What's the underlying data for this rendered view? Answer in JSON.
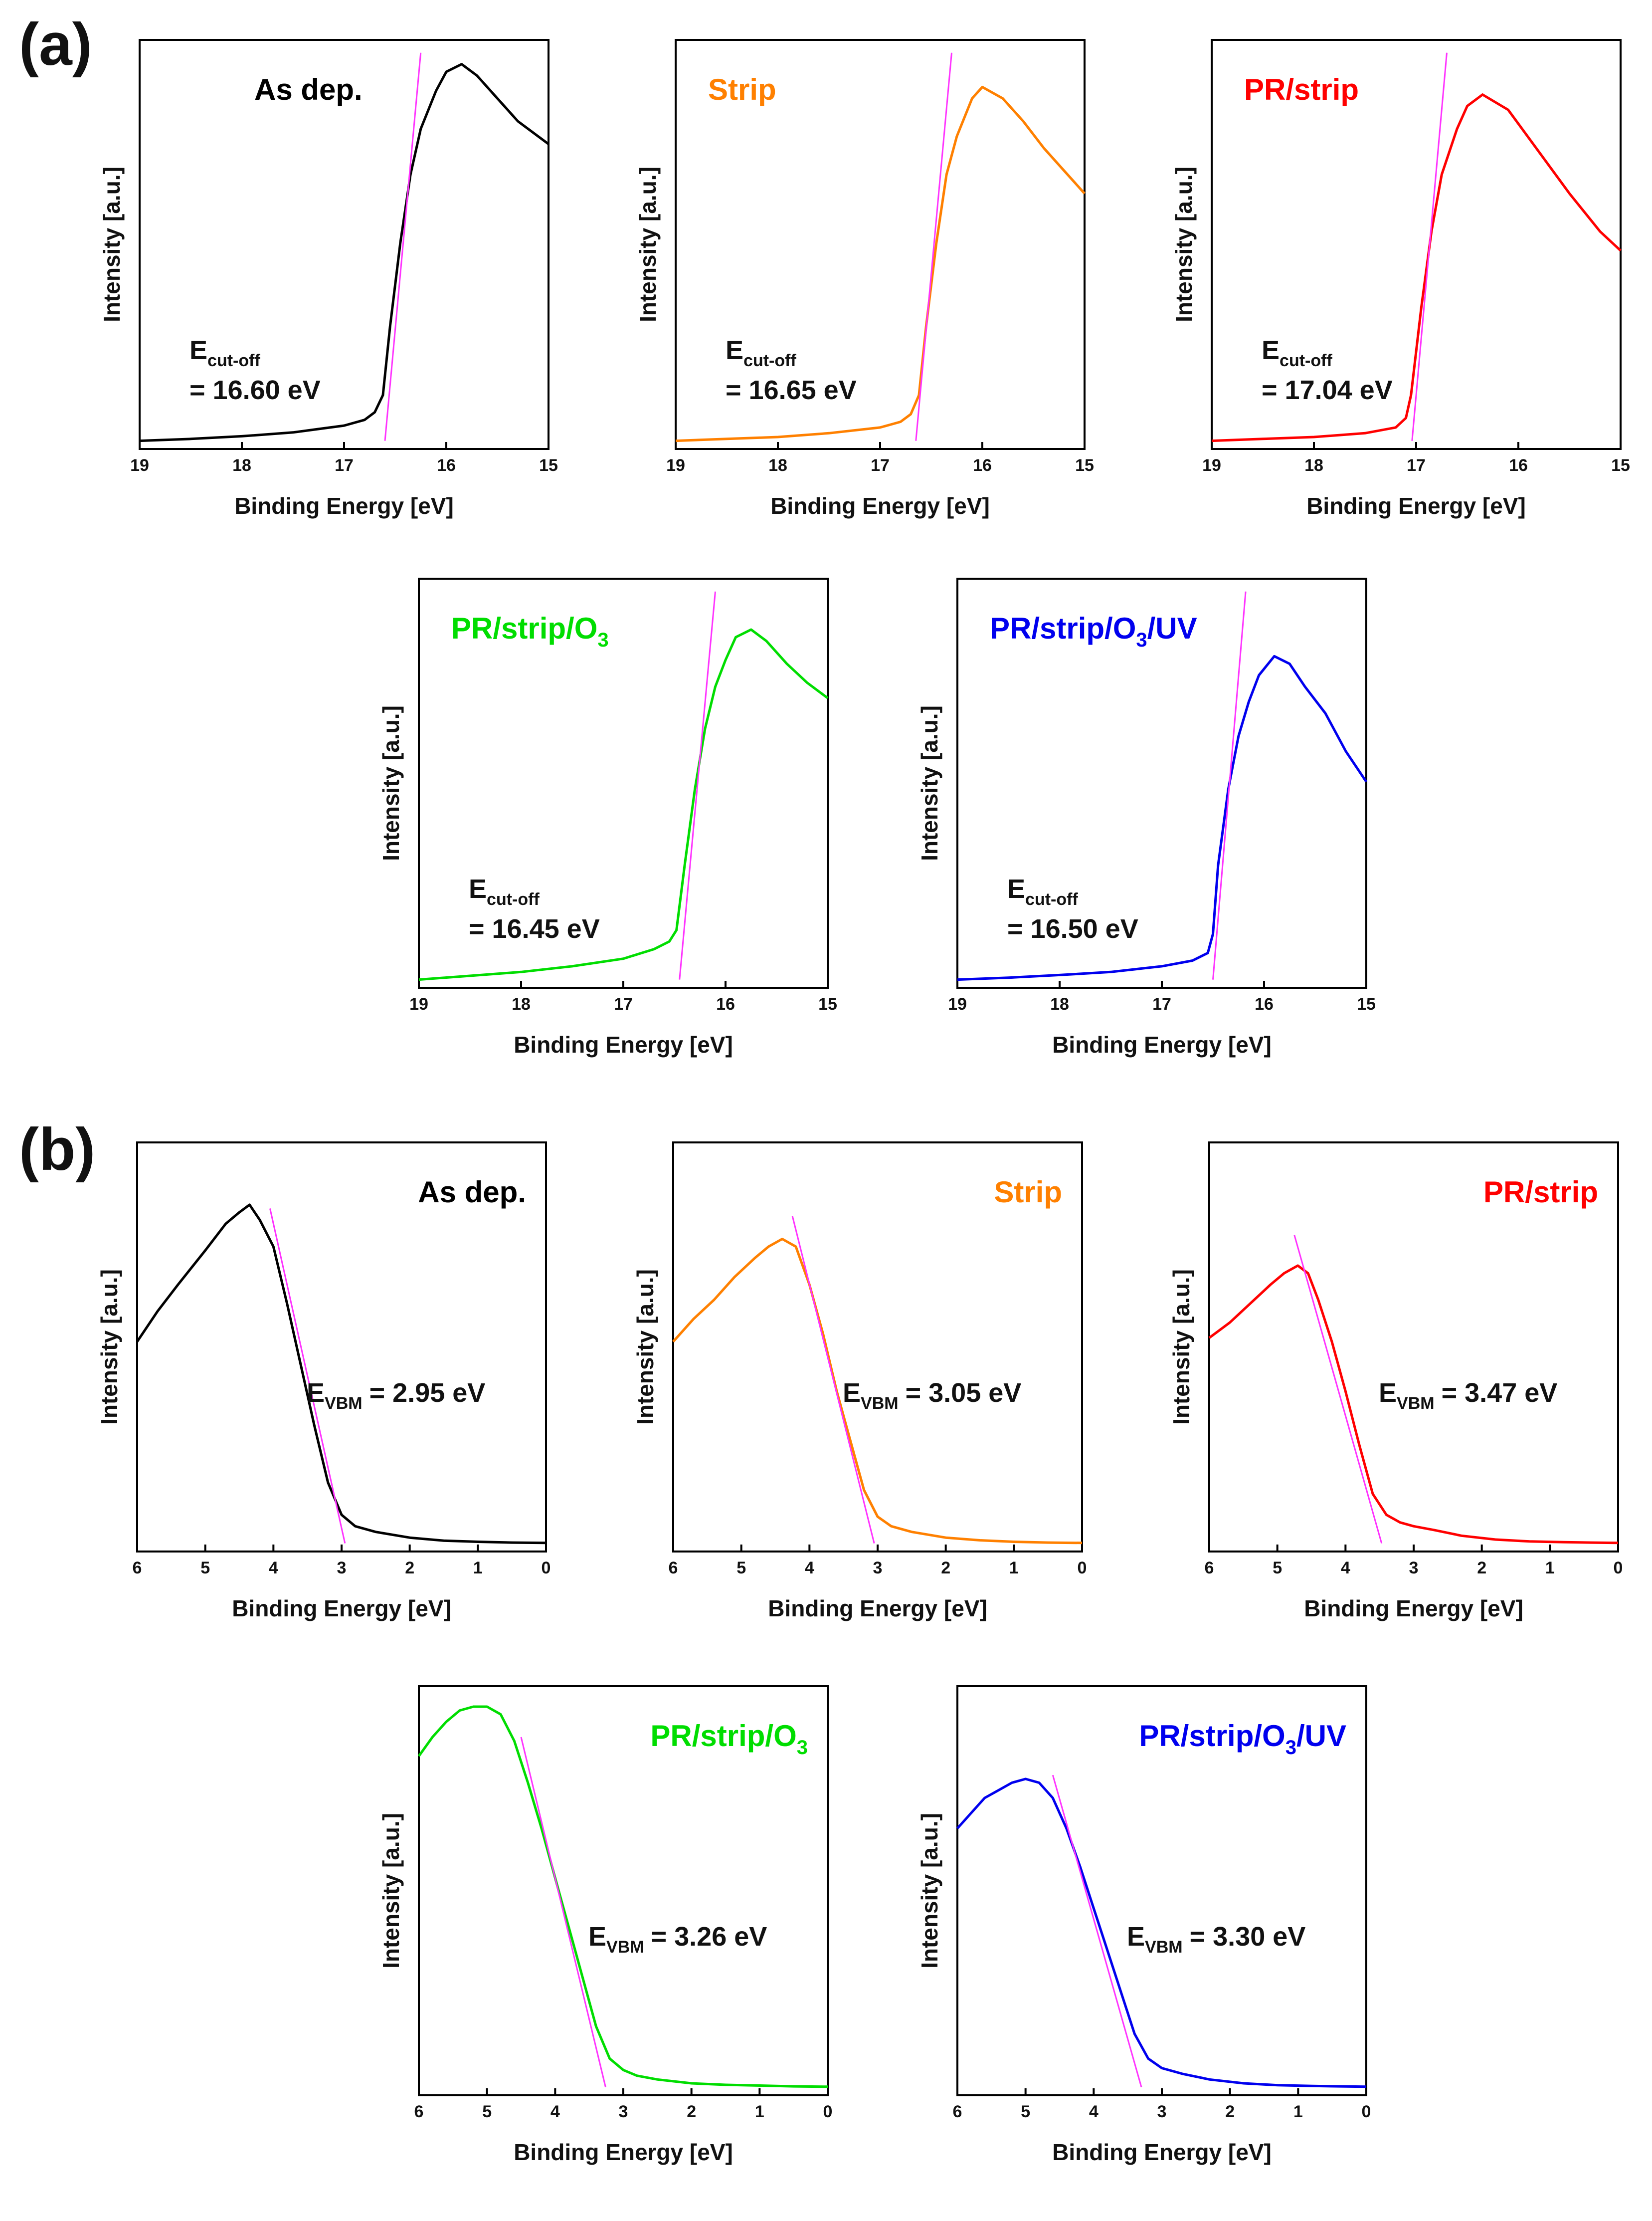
{
  "panel_labels": {
    "a": "(a)",
    "b": "(b)"
  },
  "common": {
    "xlabel": "Binding Energy [eV]",
    "ylabel": "Intensity [a.u.]",
    "cutoff_symbol": "E",
    "cutoff_sub": "cut-off",
    "vbm_symbol": "E",
    "vbm_sub": "VBM",
    "fit_color": "#ff33ff"
  },
  "chart_data": [
    {
      "id": "a1",
      "type": "line",
      "kind": "cutoff",
      "title_parts": [
        "As dep."
      ],
      "color": "#000000",
      "xlabel": "Binding Energy [eV]",
      "ylabel": "Intensity [a.u.]",
      "xlim": [
        19,
        15
      ],
      "xticks": [
        "19",
        "18",
        "17",
        "16",
        "15"
      ],
      "x": [
        19,
        18.5,
        18,
        17.5,
        17,
        16.8,
        16.7,
        16.62,
        16.55,
        16.45,
        16.35,
        16.25,
        16.1,
        16.0,
        15.85,
        15.7,
        15.5,
        15.3,
        15.0
      ],
      "y": [
        0.0,
        0.005,
        0.012,
        0.022,
        0.04,
        0.055,
        0.075,
        0.12,
        0.3,
        0.52,
        0.7,
        0.82,
        0.92,
        0.97,
        0.99,
        0.96,
        0.9,
        0.84,
        0.78
      ],
      "fit_line": {
        "x": [
          16.6,
          16.25
        ],
        "y": [
          0.0,
          1.02
        ]
      },
      "value_label": "= 16.60 eV"
    },
    {
      "id": "a2",
      "type": "line",
      "kind": "cutoff",
      "title_parts": [
        "Strip"
      ],
      "color": "#ff8000",
      "xlabel": "Binding Energy [eV]",
      "ylabel": "Intensity [a.u.]",
      "xlim": [
        19,
        15
      ],
      "xticks": [
        "19",
        "18",
        "17",
        "16",
        "15"
      ],
      "x": [
        19,
        18.5,
        18,
        17.5,
        17,
        16.8,
        16.7,
        16.62,
        16.55,
        16.45,
        16.35,
        16.25,
        16.1,
        16.0,
        15.8,
        15.6,
        15.4,
        15.2,
        15.0
      ],
      "y": [
        0.0,
        0.005,
        0.01,
        0.02,
        0.035,
        0.05,
        0.07,
        0.12,
        0.3,
        0.52,
        0.7,
        0.8,
        0.9,
        0.93,
        0.9,
        0.84,
        0.77,
        0.71,
        0.65
      ],
      "fit_line": {
        "x": [
          16.65,
          16.3
        ],
        "y": [
          0.0,
          1.02
        ]
      },
      "value_label": "= 16.65 eV"
    },
    {
      "id": "a3",
      "type": "line",
      "kind": "cutoff",
      "title_parts": [
        "PR/strip"
      ],
      "color": "#ff0000",
      "xlabel": "Binding Energy [eV]",
      "ylabel": "Intensity [a.u.]",
      "xlim": [
        19,
        15
      ],
      "xticks": [
        "19",
        "18",
        "17",
        "16",
        "15"
      ],
      "x": [
        19,
        18.5,
        18,
        17.5,
        17.2,
        17.1,
        17.05,
        16.95,
        16.85,
        16.75,
        16.6,
        16.5,
        16.35,
        16.1,
        15.8,
        15.5,
        15.2,
        15.0
      ],
      "y": [
        0.0,
        0.005,
        0.01,
        0.02,
        0.035,
        0.06,
        0.12,
        0.35,
        0.55,
        0.7,
        0.82,
        0.88,
        0.91,
        0.87,
        0.76,
        0.65,
        0.55,
        0.5
      ],
      "fit_line": {
        "x": [
          17.04,
          16.7
        ],
        "y": [
          0.0,
          1.02
        ]
      },
      "value_label": "= 17.04 eV"
    },
    {
      "id": "a4",
      "type": "line",
      "kind": "cutoff",
      "title_parts": [
        "PR/strip/O",
        "3",
        ""
      ],
      "color": "#00dd00",
      "xlabel": "Binding Energy [eV]",
      "ylabel": "Intensity [a.u.]",
      "xlim": [
        19,
        15
      ],
      "xticks": [
        "19",
        "18",
        "17",
        "16",
        "15"
      ],
      "x": [
        19,
        18.5,
        18,
        17.5,
        17,
        16.7,
        16.55,
        16.48,
        16.4,
        16.3,
        16.2,
        16.1,
        16.0,
        15.9,
        15.75,
        15.6,
        15.4,
        15.2,
        15.0
      ],
      "y": [
        0.0,
        0.01,
        0.02,
        0.035,
        0.055,
        0.08,
        0.1,
        0.13,
        0.3,
        0.5,
        0.66,
        0.77,
        0.84,
        0.9,
        0.92,
        0.89,
        0.83,
        0.78,
        0.74
      ],
      "fit_line": {
        "x": [
          16.45,
          16.1
        ],
        "y": [
          0.0,
          1.02
        ]
      },
      "value_label": "= 16.45 eV"
    },
    {
      "id": "a5",
      "type": "line",
      "kind": "cutoff",
      "title_parts": [
        "PR/strip/O",
        "3",
        "/UV"
      ],
      "color": "#0000ee",
      "xlabel": "Binding Energy [eV]",
      "ylabel": "Intensity [a.u.]",
      "xlim": [
        19,
        15
      ],
      "xticks": [
        "19",
        "18",
        "17",
        "16",
        "15"
      ],
      "x": [
        19,
        18.5,
        18,
        17.5,
        17,
        16.7,
        16.55,
        16.5,
        16.45,
        16.35,
        16.25,
        16.15,
        16.05,
        15.9,
        15.75,
        15.6,
        15.4,
        15.2,
        15.0
      ],
      "y": [
        0.0,
        0.005,
        0.012,
        0.02,
        0.035,
        0.05,
        0.07,
        0.12,
        0.3,
        0.5,
        0.64,
        0.73,
        0.8,
        0.85,
        0.83,
        0.77,
        0.7,
        0.6,
        0.52
      ],
      "fit_line": {
        "x": [
          16.5,
          16.18
        ],
        "y": [
          0.0,
          1.02
        ]
      },
      "value_label": "= 16.50 eV"
    },
    {
      "id": "b1",
      "type": "line",
      "kind": "vbm",
      "title_parts": [
        "As dep."
      ],
      "color": "#000000",
      "xlabel": "Binding Energy [eV]",
      "ylabel": "Intensity [a.u.]",
      "xlim": [
        6,
        0
      ],
      "xticks": [
        "6",
        "5",
        "4",
        "3",
        "2",
        "1",
        "0"
      ],
      "x": [
        6,
        5.7,
        5.4,
        5.0,
        4.7,
        4.5,
        4.35,
        4.2,
        4.0,
        3.8,
        3.6,
        3.4,
        3.2,
        3.0,
        2.8,
        2.5,
        2.0,
        1.5,
        1.0,
        0.5,
        0
      ],
      "y": [
        0.53,
        0.61,
        0.68,
        0.77,
        0.84,
        0.87,
        0.89,
        0.85,
        0.78,
        0.63,
        0.47,
        0.31,
        0.16,
        0.075,
        0.045,
        0.03,
        0.015,
        0.007,
        0.004,
        0.002,
        0.001
      ],
      "fit_line": {
        "x": [
          4.05,
          2.95
        ],
        "y": [
          0.88,
          0.0
        ]
      },
      "value_label": "= 2.95 eV"
    },
    {
      "id": "b2",
      "type": "line",
      "kind": "vbm",
      "title_parts": [
        "Strip"
      ],
      "color": "#ff8000",
      "xlabel": "Binding Energy [eV]",
      "ylabel": "Intensity [a.u.]",
      "xlim": [
        6,
        0
      ],
      "xticks": [
        "6",
        "5",
        "4",
        "3",
        "2",
        "1",
        "0"
      ],
      "x": [
        6,
        5.7,
        5.4,
        5.1,
        4.8,
        4.6,
        4.4,
        4.2,
        4.0,
        3.8,
        3.6,
        3.4,
        3.2,
        3.0,
        2.8,
        2.5,
        2.0,
        1.5,
        1.0,
        0.5,
        0
      ],
      "y": [
        0.53,
        0.59,
        0.64,
        0.7,
        0.75,
        0.78,
        0.8,
        0.78,
        0.68,
        0.55,
        0.4,
        0.27,
        0.14,
        0.07,
        0.045,
        0.03,
        0.015,
        0.008,
        0.004,
        0.002,
        0.001
      ],
      "fit_line": {
        "x": [
          4.25,
          3.05
        ],
        "y": [
          0.86,
          0.0
        ]
      },
      "value_label": "= 3.05 eV"
    },
    {
      "id": "b3",
      "type": "line",
      "kind": "vbm",
      "title_parts": [
        "PR/strip"
      ],
      "color": "#ff0000",
      "xlabel": "Binding Energy [eV]",
      "ylabel": "Intensity [a.u.]",
      "xlim": [
        6,
        0
      ],
      "xticks": [
        "6",
        "5",
        "4",
        "3",
        "2",
        "1",
        "0"
      ],
      "x": [
        6,
        5.7,
        5.4,
        5.1,
        4.9,
        4.7,
        4.55,
        4.4,
        4.2,
        4.0,
        3.8,
        3.6,
        3.4,
        3.2,
        3.0,
        2.7,
        2.3,
        1.8,
        1.3,
        0.8,
        0.4,
        0
      ],
      "y": [
        0.54,
        0.58,
        0.63,
        0.68,
        0.71,
        0.73,
        0.71,
        0.64,
        0.53,
        0.4,
        0.26,
        0.13,
        0.075,
        0.055,
        0.045,
        0.035,
        0.02,
        0.01,
        0.005,
        0.003,
        0.002,
        0.001
      ],
      "fit_line": {
        "x": [
          4.75,
          3.47
        ],
        "y": [
          0.81,
          0.0
        ]
      },
      "value_label": "= 3.47 eV"
    },
    {
      "id": "b4",
      "type": "line",
      "kind": "vbm",
      "title_parts": [
        "PR/strip/O",
        "3",
        ""
      ],
      "color": "#00dd00",
      "xlabel": "Binding Energy [eV]",
      "ylabel": "Intensity [a.u.]",
      "xlim": [
        6,
        0
      ],
      "xticks": [
        "6",
        "5",
        "4",
        "3",
        "2",
        "1",
        "0"
      ],
      "x": [
        6,
        5.8,
        5.6,
        5.4,
        5.2,
        5.0,
        4.8,
        4.6,
        4.4,
        4.2,
        4.0,
        3.8,
        3.6,
        3.4,
        3.2,
        3.0,
        2.8,
        2.5,
        2.0,
        1.5,
        1.0,
        0.5,
        0
      ],
      "y": [
        0.87,
        0.92,
        0.96,
        0.99,
        1.0,
        1.0,
        0.98,
        0.91,
        0.8,
        0.68,
        0.55,
        0.42,
        0.29,
        0.16,
        0.075,
        0.045,
        0.03,
        0.02,
        0.01,
        0.006,
        0.004,
        0.002,
        0.001
      ],
      "fit_line": {
        "x": [
          4.5,
          3.26
        ],
        "y": [
          0.92,
          0.0
        ]
      },
      "value_label": "= 3.26 eV"
    },
    {
      "id": "b5",
      "type": "line",
      "kind": "vbm",
      "title_parts": [
        "PR/strip/O",
        "3",
        "/UV"
      ],
      "color": "#0000ee",
      "xlabel": "Binding Energy [eV]",
      "ylabel": "Intensity [a.u.]",
      "xlim": [
        6,
        0
      ],
      "xticks": [
        "6",
        "5",
        "4",
        "3",
        "2",
        "1",
        "0"
      ],
      "x": [
        6,
        5.8,
        5.6,
        5.4,
        5.2,
        5.0,
        4.8,
        4.6,
        4.4,
        4.2,
        4.0,
        3.8,
        3.6,
        3.4,
        3.2,
        3.0,
        2.7,
        2.3,
        1.8,
        1.3,
        0.8,
        0.4,
        0
      ],
      "y": [
        0.68,
        0.72,
        0.76,
        0.78,
        0.8,
        0.81,
        0.8,
        0.76,
        0.68,
        0.58,
        0.47,
        0.36,
        0.25,
        0.14,
        0.075,
        0.05,
        0.035,
        0.02,
        0.01,
        0.005,
        0.003,
        0.002,
        0.001
      ],
      "fit_line": {
        "x": [
          4.6,
          3.3
        ],
        "y": [
          0.82,
          0.0
        ]
      },
      "value_label": "= 3.30 eV"
    }
  ]
}
